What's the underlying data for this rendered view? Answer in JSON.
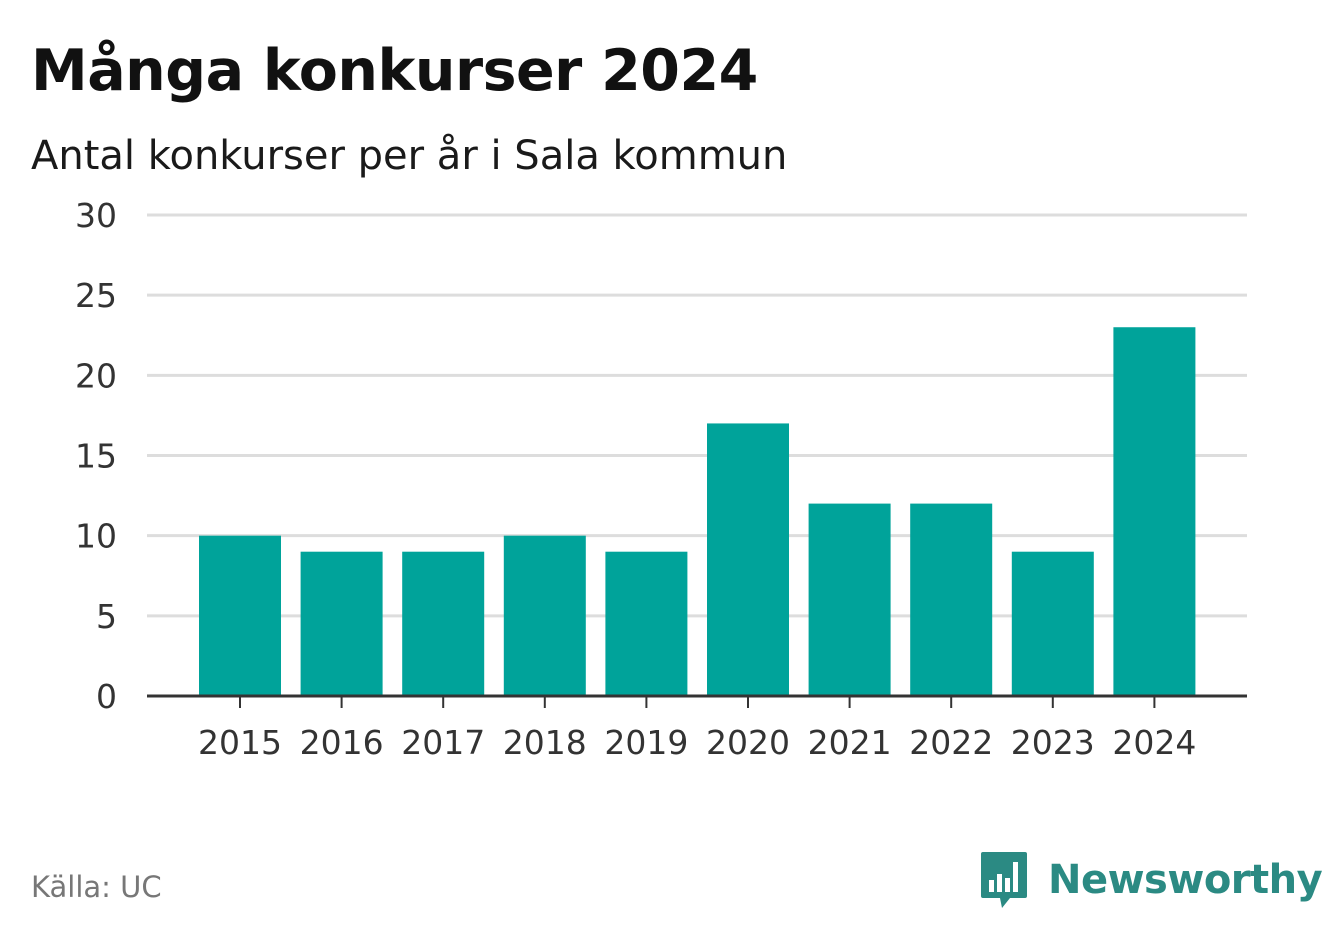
{
  "header": {
    "title": "Många konkurser 2024",
    "subtitle": "Antal konkurser per år i Sala kommun"
  },
  "footer": {
    "source": "Källa: UC",
    "brand": "Newsworthy",
    "brand_icon": "bar-chart-speech-bubble-icon"
  },
  "colors": {
    "bar": "#00a39a",
    "grid": "#dddddd",
    "axis": "#333333",
    "brand": "#2b8a83"
  },
  "chart_data": {
    "type": "bar",
    "title": "Många konkurser 2024",
    "subtitle": "Antal konkurser per år i Sala kommun",
    "xlabel": "",
    "ylabel": "",
    "categories": [
      "2015",
      "2016",
      "2017",
      "2018",
      "2019",
      "2020",
      "2021",
      "2022",
      "2023",
      "2024"
    ],
    "values": [
      10,
      9,
      9,
      10,
      9,
      17,
      12,
      12,
      9,
      23
    ],
    "ylim": [
      0,
      30
    ],
    "yticks": [
      0,
      5,
      10,
      15,
      20,
      25,
      30
    ],
    "grid": true,
    "legend": "none"
  }
}
